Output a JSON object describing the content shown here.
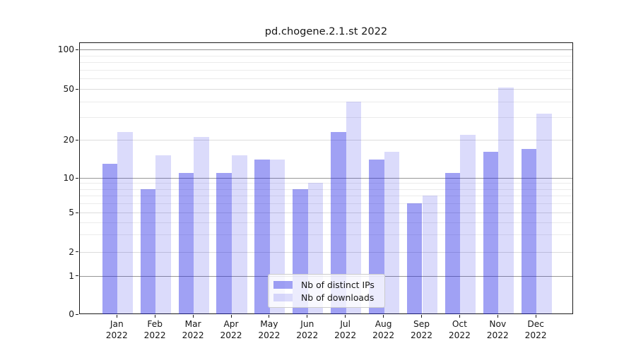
{
  "chart_data": {
    "type": "bar",
    "title": "pd.chogene.2.1.st 2022",
    "categories": [
      "Jan",
      "Feb",
      "Mar",
      "Apr",
      "May",
      "Jun",
      "Jul",
      "Aug",
      "Sep",
      "Oct",
      "Nov",
      "Dec"
    ],
    "year_label": "2022",
    "series": [
      {
        "name": "Nb of distinct IPs",
        "color": "rgba(28,32,229,0.42)",
        "values": [
          13,
          8,
          11,
          11,
          14,
          8,
          23,
          14,
          6,
          11,
          16,
          17
        ]
      },
      {
        "name": "Nb of downloads",
        "color": "rgba(28,32,229,0.16)",
        "values": [
          23,
          15,
          21,
          15,
          14,
          9,
          40,
          16,
          7,
          22,
          51,
          32
        ]
      }
    ],
    "yaxis": {
      "scale": "symlog",
      "tick_values": [
        0,
        1,
        2,
        5,
        10,
        20,
        50,
        100
      ],
      "tick_labels": [
        "0",
        "1",
        "2",
        "5",
        "10",
        "20",
        "50",
        "100"
      ],
      "grid_power10_values": [
        1,
        10,
        100
      ],
      "grid_labeled_values": [
        2,
        5,
        20,
        50
      ],
      "grid_minor_values": [
        3,
        4,
        6,
        7,
        8,
        9,
        30,
        40,
        60,
        70,
        80,
        90
      ],
      "ylim": [
        0,
        100
      ]
    },
    "legend_position": "lower center",
    "grid": "on",
    "colors": {
      "grid_power10": "#979797",
      "grid_labeled": "#dcdcdc",
      "grid_minor": "#ebebeb",
      "spine": "#1a1a1a",
      "text": "#151515"
    }
  }
}
